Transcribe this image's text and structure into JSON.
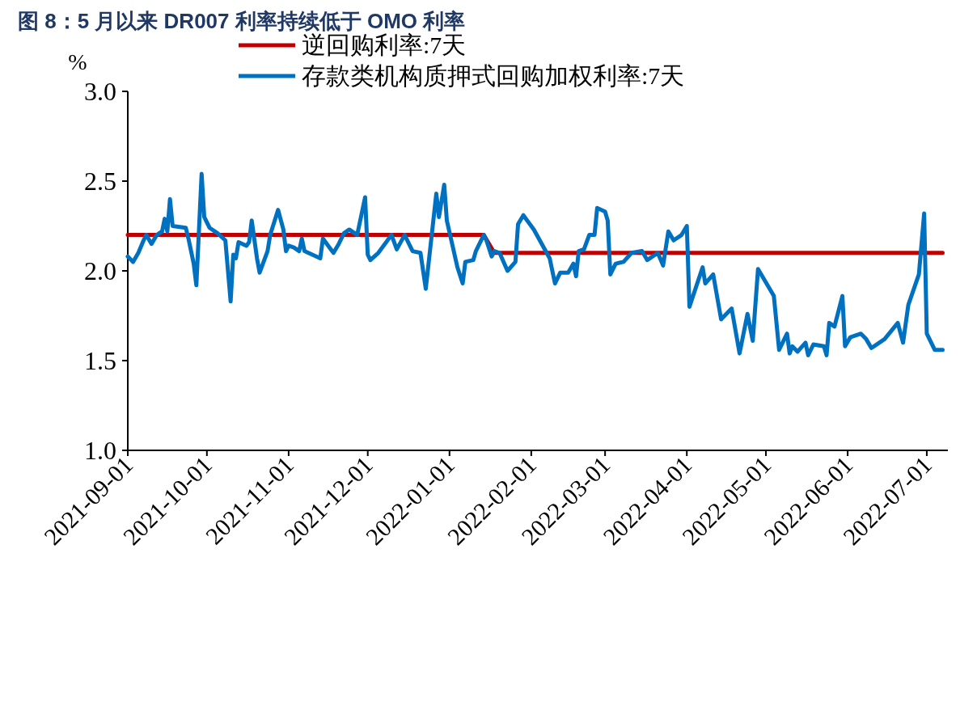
{
  "chart_data": {
    "type": "line",
    "title": "图 8：5 月以来 DR007 利率持续低于 OMO 利率",
    "ylabel": "%",
    "legend": "top",
    "line_style": "solid",
    "marker": "none",
    "xlim": [
      "2021-09-01",
      "2022-07-09"
    ],
    "xticks": [
      "2021-09-01",
      "2021-10-01",
      "2021-11-01",
      "2021-12-01",
      "2022-01-01",
      "2022-02-01",
      "2022-03-01",
      "2022-04-01",
      "2022-05-01",
      "2022-06-01",
      "2022-07-01"
    ],
    "ylim": [
      1,
      3
    ],
    "yticks": [
      {
        "value": 1,
        "label": "1.0"
      },
      {
        "value": 1.5,
        "label": "1.5"
      },
      {
        "value": 2,
        "label": "2.0"
      },
      {
        "value": 2.5,
        "label": "2.5"
      },
      {
        "value": 3,
        "label": "3.0"
      }
    ],
    "series": [
      {
        "name": "逆回购利率:7天",
        "color": "#c00000",
        "x": [
          "2021-09-01",
          "2022-01-14",
          "2022-01-18",
          "2022-07-07"
        ],
        "values": [
          2.2,
          2.2,
          2.1,
          2.1
        ]
      },
      {
        "name": "存款类机构质押式回购加权利率:7天",
        "color": "#0070c0",
        "x": [
          "2021-09-01",
          "2021-09-03",
          "2021-09-05",
          "2021-09-07",
          "2021-09-08",
          "2021-09-10",
          "2021-09-12",
          "2021-09-14",
          "2021-09-15",
          "2021-09-16",
          "2021-09-17",
          "2021-09-18",
          "2021-09-23",
          "2021-09-24",
          "2021-09-26",
          "2021-09-27",
          "2021-09-29",
          "2021-09-30",
          "2021-10-02",
          "2021-10-05",
          "2021-10-08",
          "2021-10-10",
          "2021-10-11",
          "2021-10-12",
          "2021-10-13",
          "2021-10-16",
          "2021-10-17",
          "2021-10-18",
          "2021-10-20",
          "2021-10-21",
          "2021-10-24",
          "2021-10-25",
          "2021-10-28",
          "2021-10-30",
          "2021-10-31",
          "2021-11-01",
          "2021-11-03",
          "2021-11-05",
          "2021-11-06",
          "2021-11-07",
          "2021-11-13",
          "2021-11-14",
          "2021-11-16",
          "2021-11-18",
          "2021-11-20",
          "2021-11-22",
          "2021-11-24",
          "2021-11-27",
          "2021-11-30",
          "2021-12-01",
          "2021-12-02",
          "2021-12-05",
          "2021-12-08",
          "2021-12-10",
          "2021-12-12",
          "2021-12-15",
          "2021-12-18",
          "2021-12-21",
          "2021-12-23",
          "2021-12-27",
          "2021-12-28",
          "2021-12-30",
          "2021-12-31",
          "2022-01-04",
          "2022-01-06",
          "2022-01-07",
          "2022-01-10",
          "2022-01-11",
          "2022-01-14",
          "2022-01-15",
          "2022-01-17",
          "2022-01-18",
          "2022-01-20",
          "2022-01-23",
          "2022-01-26",
          "2022-01-27",
          "2022-01-29",
          "2022-02-02",
          "2022-02-08",
          "2022-02-10",
          "2022-02-12",
          "2022-02-15",
          "2022-02-17",
          "2022-02-18",
          "2022-02-19",
          "2022-02-21",
          "2022-02-23",
          "2022-02-25",
          "2022-02-26",
          "2022-03-01",
          "2022-03-02",
          "2022-03-03",
          "2022-03-05",
          "2022-03-08",
          "2022-03-11",
          "2022-03-15",
          "2022-03-17",
          "2022-03-21",
          "2022-03-23",
          "2022-03-25",
          "2022-03-27",
          "2022-03-30",
          "2022-04-01",
          "2022-04-02",
          "2022-04-07",
          "2022-04-08",
          "2022-04-11",
          "2022-04-14",
          "2022-04-18",
          "2022-04-21",
          "2022-04-24",
          "2022-04-26",
          "2022-04-28",
          "2022-05-04",
          "2022-05-06",
          "2022-05-09",
          "2022-05-10",
          "2022-05-11",
          "2022-05-13",
          "2022-05-16",
          "2022-05-17",
          "2022-05-19",
          "2022-05-23",
          "2022-05-24",
          "2022-05-25",
          "2022-05-27",
          "2022-05-30",
          "2022-05-31",
          "2022-06-02",
          "2022-06-06",
          "2022-06-08",
          "2022-06-10",
          "2022-06-15",
          "2022-06-20",
          "2022-06-22",
          "2022-06-24",
          "2022-06-28",
          "2022-06-30",
          "2022-07-01",
          "2022-07-04",
          "2022-07-07"
        ],
        "values": [
          2.08,
          2.05,
          2.1,
          2.17,
          2.2,
          2.15,
          2.2,
          2.22,
          2.29,
          2.22,
          2.4,
          2.25,
          2.24,
          2.18,
          2.04,
          1.92,
          2.54,
          2.3,
          2.24,
          2.21,
          2.17,
          1.83,
          2.09,
          2.07,
          2.16,
          2.14,
          2.16,
          2.28,
          2.07,
          1.99,
          2.11,
          2.2,
          2.34,
          2.23,
          2.11,
          2.14,
          2.13,
          2.11,
          2.18,
          2.11,
          2.07,
          2.18,
          2.14,
          2.1,
          2.15,
          2.21,
          2.23,
          2.2,
          2.41,
          2.09,
          2.06,
          2.1,
          2.16,
          2.2,
          2.12,
          2.2,
          2.11,
          2.1,
          1.9,
          2.43,
          2.3,
          2.48,
          2.28,
          2.02,
          1.93,
          2.05,
          2.06,
          2.11,
          2.2,
          2.17,
          2.08,
          2.11,
          2.1,
          2.0,
          2.05,
          2.26,
          2.31,
          2.23,
          2.07,
          1.93,
          1.99,
          1.99,
          2.04,
          1.97,
          2.11,
          2.12,
          2.2,
          2.2,
          2.35,
          2.33,
          2.28,
          1.98,
          2.04,
          2.05,
          2.1,
          2.11,
          2.06,
          2.1,
          2.03,
          2.22,
          2.17,
          2.2,
          2.25,
          1.8,
          2.02,
          1.93,
          1.98,
          1.73,
          1.79,
          1.54,
          1.76,
          1.61,
          2.01,
          1.86,
          1.56,
          1.65,
          1.54,
          1.58,
          1.55,
          1.6,
          1.53,
          1.59,
          1.58,
          1.53,
          1.71,
          1.69,
          1.86,
          1.58,
          1.63,
          1.65,
          1.62,
          1.57,
          1.62,
          1.71,
          1.6,
          1.81,
          1.98,
          2.32,
          1.65,
          1.56,
          1.56
        ]
      }
    ]
  }
}
